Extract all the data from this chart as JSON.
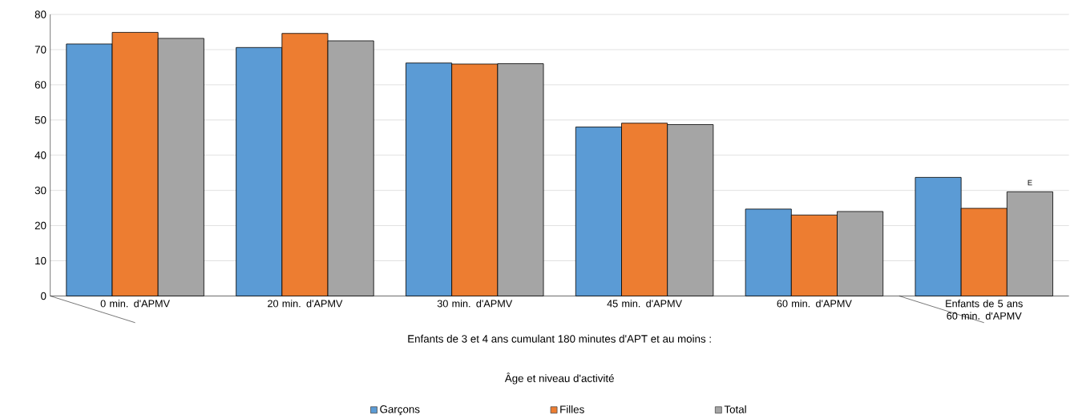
{
  "chart_data": {
    "type": "bar",
    "categories": [
      "0 min. d'APMV",
      "20 min. d'APMV",
      "30 min. d'APMV",
      "45 min. d'APMV",
      "60 min. d'APMV",
      "Enfants de 5 ans 60 min. d'APMV"
    ],
    "series": [
      {
        "name": "Garçons",
        "color": "#5b9bd5",
        "values": [
          71.6,
          70.6,
          66.2,
          48.0,
          24.7,
          33.7
        ]
      },
      {
        "name": "Filles",
        "color": "#ed7d31",
        "values": [
          74.9,
          74.6,
          65.9,
          49.1,
          23.0,
          24.9
        ]
      },
      {
        "name": "Total",
        "color": "#a5a5a5",
        "values": [
          73.2,
          72.5,
          66.0,
          48.7,
          24.0,
          29.6
        ]
      }
    ],
    "xlabel": "Âge et niveau d'activité",
    "annotations": [
      "Enfants de 3 et 4 ans cumulant 180 minutes d'APT et au moins :",
      "E"
    ],
    "ylim": [
      0,
      80
    ],
    "yticks": [
      0,
      10,
      20,
      30,
      40,
      50,
      60,
      70,
      80
    ],
    "grid": "y",
    "legend": "bottom"
  }
}
